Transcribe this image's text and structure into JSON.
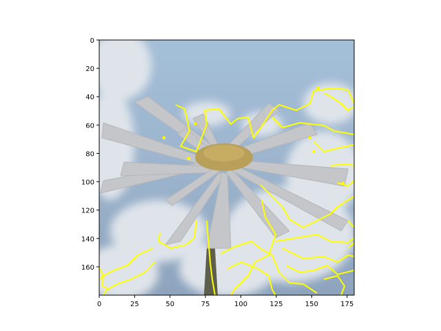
{
  "chart_data": {
    "type": "image",
    "title": "",
    "xlabel": "",
    "ylabel": "",
    "xlim": [
      0,
      180
    ],
    "ylim": [
      180,
      0
    ],
    "x_ticks": [
      0,
      25,
      50,
      75,
      100,
      125,
      150,
      175
    ],
    "y_ticks": [
      0,
      20,
      40,
      60,
      80,
      100,
      120,
      140,
      160
    ],
    "grid": false,
    "legend": "none",
    "image": {
      "subject": "white daisy flower against a cloudy blue sky",
      "overlay": "yellow edge-detection contours",
      "overlay_color": "#ffff00",
      "sky_color": "#8fa9c6",
      "petal_color": "#c7c9cb",
      "center_color": "#b59a4a",
      "stem_color": "#5e5e4c"
    }
  }
}
